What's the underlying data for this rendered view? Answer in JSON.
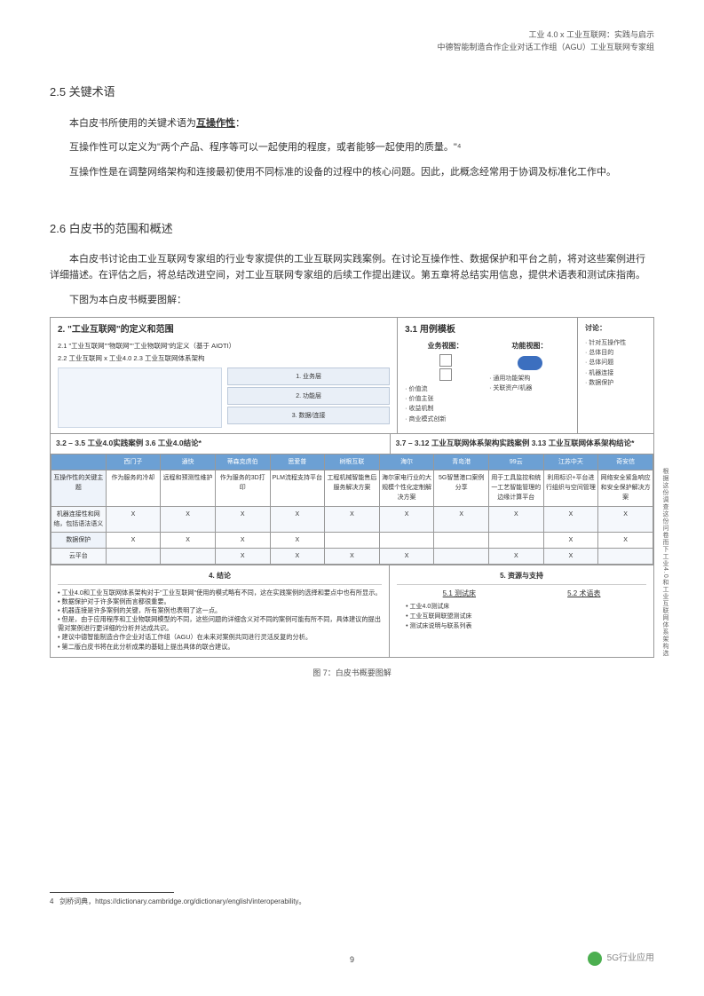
{
  "header": {
    "line1": "工业 4.0 x 工业互联网：实践与启示",
    "line2": "中德智能制造合作企业对话工作组（AGU）工业互联网专家组"
  },
  "section25": {
    "heading": "2.5 关键术语",
    "p1a": "本白皮书所使用的关键术语为",
    "p1b": "互操作性",
    "p1c": "：",
    "p2": "互操作性可以定义为\"两个产品、程序等可以一起使用的程度，或者能够一起使用的质量。\"⁴",
    "p3": "互操作性是在调整网络架构和连接最初使用不同标准的设备的过程中的核心问题。因此，此概念经常用于协调及标准化工作中。"
  },
  "section26": {
    "heading": "2.6   白皮书的范围和概述",
    "p1": "本白皮书讨论由工业互联网专家组的行业专家提供的工业互联网实践案例。在讨论互操作性、数据保护和平台之前，将对这些案例进行详细描述。在评估之后，将总结改进空间，对工业互联网专家组的后续工作提出建议。第五章将总结实用信息，提供术语表和测试床指南。",
    "p2": "下图为本白皮书概要图解："
  },
  "diagram": {
    "panel2": {
      "title": "2. \"工业互联网\"的定义和范围",
      "sub1": "2.1 \"工业互联网\"\"物联网\"\"工业物联网\"的定义（基于 AIOTI）",
      "sub2": "2.2 工业互联网 x 工业4.0       2.3 工业互联网体系架构",
      "stack": [
        "1. 业务层",
        "2. 功能层",
        "3. 数据/连接"
      ]
    },
    "panel3": {
      "title": "3.1 用例模板",
      "col1": "业务视图：",
      "col2": "功能视图：",
      "col3": "讨论：",
      "tinylist1": [
        "价值流",
        "价值主张",
        "收益机制",
        "商业模式创新"
      ],
      "tinylist2": [
        "通用功能架构",
        "关联资产/机器"
      ],
      "tinylist3": [
        "针对互操作性",
        "总体目的",
        "总体问题",
        "机器连接",
        "数据保护"
      ]
    },
    "caseband": {
      "left": "3.2 – 3.5 工业4.0实践案例          3.6 工业4.0结论*",
      "right": "3.7 – 3.12 工业互联网体系架构实践案例   3.13 工业互联网体系架构结论*"
    },
    "matrix": {
      "cols": [
        "西门子",
        "通快",
        "蒂森克虏伯",
        "思爱普",
        "树根互联",
        "海尔",
        "青岛港",
        "99云",
        "江苏中天",
        "奇安信"
      ],
      "rows": [
        {
          "label": "互操作性的关键主题",
          "cells": [
            "作为服务的冷却",
            "远程和预测性维护",
            "作为服务的3D打印",
            "PLM流程支持平台",
            "工程机械智能售后服务解决方案",
            "海尔家电行业的大规模个性化定制解决方案",
            "5G智慧港口案例分享",
            "用于工具监控和统一工艺智能管理的边缘计算平台",
            "利用标识+平台进行组织与空间管理",
            "网络安全紧急响应和安全保护解决方案"
          ]
        },
        {
          "label": "机器连接性和网络，包括语法语义",
          "cells": [
            "X",
            "X",
            "X",
            "X",
            "X",
            "X",
            "X",
            "X",
            "X",
            "X"
          ]
        },
        {
          "label": "数据保护",
          "cells": [
            "X",
            "X",
            "X",
            "X",
            "",
            "",
            "",
            "",
            "X",
            "X"
          ]
        },
        {
          "label": "云平台",
          "cells": [
            "",
            "",
            "X",
            "X",
            "X",
            "X",
            "",
            "X",
            "X",
            ""
          ]
        }
      ]
    },
    "bottom": {
      "left_head": "4. 结论",
      "left_items": [
        "工业4.0和工业互联网体系架构对于\"工业互联网\"使用的模式略有不同，这在实践案例的选择和要点中也有所显示。",
        "数据保护对于许多案例而言都很重要。",
        "机器连接是许多案例的关键，所有案例也表明了这一点。",
        "但是，由于应用程序和工业物联网模型的不同，这些问题的详细含义对不同的案例可能有所不同，具体建议的提出需对案例进行更详细的分析并达成共识。",
        "建议中德智能制造合作企业对话工作组（AGU）在未来对案例共同进行灵活反复的分析。",
        "第二版白皮书将在此分析成果的基础上提出具体的联合建议。"
      ],
      "right_head": "5. 资源与支持",
      "r1_head": "5.1 测试床",
      "r1_items": [
        "工业4.0测试床",
        "工业互联网联盟测试床",
        "测试床说明与联系列表"
      ],
      "r2_head": "5.2 术语表"
    },
    "side": "根据这份调查这份问卷而下工业4.0和工业互联网体系架构选"
  },
  "figcaption": "图 7：白皮书概要图解",
  "footnote": {
    "num": "4",
    "text": "剑桥词典，https://dictionary.cambridge.org/dictionary/english/interoperability。"
  },
  "pagenum": "9",
  "watermark": "5G行业应用"
}
